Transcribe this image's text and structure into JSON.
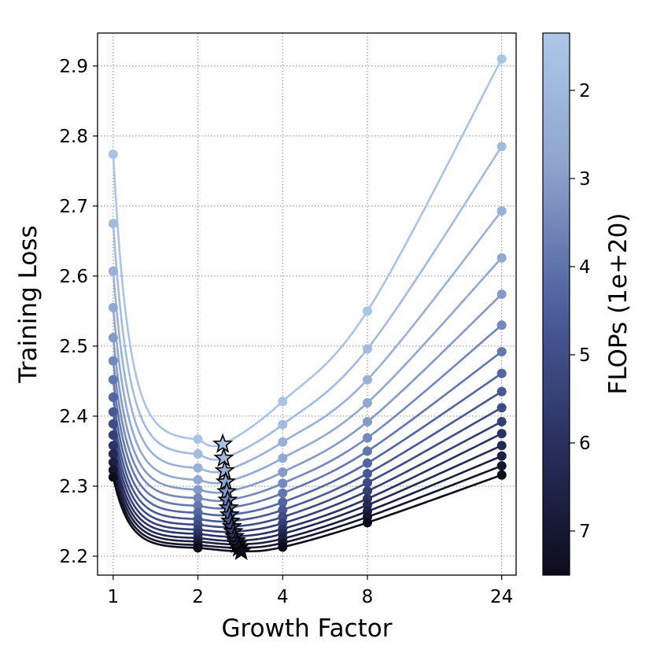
{
  "chart_data": {
    "type": "line",
    "xlabel": "Growth Factor",
    "ylabel": "Training Loss",
    "x_scale": "log",
    "x_ticks": [
      1,
      2,
      4,
      8,
      24
    ],
    "x_tick_labels": [
      "1",
      "2",
      "4",
      "8",
      "24"
    ],
    "y_ticks": [
      2.2,
      2.3,
      2.4,
      2.5,
      2.6,
      2.7,
      2.8,
      2.9
    ],
    "y_tick_labels": [
      "2.2",
      "2.3",
      "2.4",
      "2.5",
      "2.6",
      "2.7",
      "2.8",
      "2.9"
    ],
    "xlim": [
      0.88,
      27
    ],
    "ylim": [
      2.173,
      2.947
    ],
    "grid": true,
    "x": [
      1,
      2,
      4,
      8,
      24
    ],
    "series": [
      {
        "flops": 1.5,
        "values": [
          2.774,
          2.367,
          2.421,
          2.55,
          2.91
        ],
        "min": {
          "x": 2.45,
          "y": 2.36
        }
      },
      {
        "flops": 1.9,
        "values": [
          2.675,
          2.346,
          2.388,
          2.496,
          2.785
        ],
        "min": {
          "x": 2.47,
          "y": 2.34
        }
      },
      {
        "flops": 2.3,
        "values": [
          2.607,
          2.326,
          2.363,
          2.452,
          2.693
        ],
        "min": {
          "x": 2.49,
          "y": 2.322
        }
      },
      {
        "flops": 2.7,
        "values": [
          2.555,
          2.309,
          2.34,
          2.419,
          2.626
        ],
        "min": {
          "x": 2.51,
          "y": 2.306
        }
      },
      {
        "flops": 3.1,
        "values": [
          2.512,
          2.295,
          2.32,
          2.392,
          2.574
        ],
        "min": {
          "x": 2.53,
          "y": 2.292
        }
      },
      {
        "flops": 3.5,
        "values": [
          2.479,
          2.283,
          2.304,
          2.369,
          2.53
        ],
        "min": {
          "x": 2.55,
          "y": 2.28
        }
      },
      {
        "flops": 3.9,
        "values": [
          2.452,
          2.272,
          2.29,
          2.35,
          2.492
        ],
        "min": {
          "x": 2.57,
          "y": 2.269
        }
      },
      {
        "flops": 4.3,
        "values": [
          2.427,
          2.262,
          2.277,
          2.333,
          2.461
        ],
        "min": {
          "x": 2.59,
          "y": 2.259
        }
      },
      {
        "flops": 4.7,
        "values": [
          2.406,
          2.253,
          2.266,
          2.318,
          2.435
        ],
        "min": {
          "x": 2.61,
          "y": 2.25
        }
      },
      {
        "flops": 5.1,
        "values": [
          2.389,
          2.245,
          2.256,
          2.305,
          2.412
        ],
        "min": {
          "x": 2.64,
          "y": 2.242
        }
      },
      {
        "flops": 5.5,
        "values": [
          2.373,
          2.238,
          2.247,
          2.293,
          2.392
        ],
        "min": {
          "x": 2.67,
          "y": 2.235
        }
      },
      {
        "flops": 5.9,
        "values": [
          2.358,
          2.232,
          2.239,
          2.282,
          2.375
        ],
        "min": {
          "x": 2.7,
          "y": 2.228
        }
      },
      {
        "flops": 6.3,
        "values": [
          2.346,
          2.226,
          2.232,
          2.273,
          2.358
        ],
        "min": {
          "x": 2.73,
          "y": 2.222
        }
      },
      {
        "flops": 6.7,
        "values": [
          2.334,
          2.221,
          2.225,
          2.264,
          2.343
        ],
        "min": {
          "x": 2.76,
          "y": 2.217
        }
      },
      {
        "flops": 7.1,
        "values": [
          2.323,
          2.216,
          2.219,
          2.256,
          2.329
        ],
        "min": {
          "x": 2.8,
          "y": 2.212
        }
      },
      {
        "flops": 7.5,
        "values": [
          2.313,
          2.212,
          2.213,
          2.248,
          2.316
        ],
        "min": {
          "x": 2.85,
          "y": 2.207
        }
      }
    ],
    "colorbar": {
      "label": "FLOPs (1e+20)",
      "ticks": [
        2,
        3,
        4,
        5,
        6,
        7
      ],
      "tick_labels": [
        "2",
        "3",
        "4",
        "5",
        "6",
        "7"
      ],
      "range": [
        1.35,
        7.5
      ],
      "reversed": true,
      "colors": [
        "#0c0c1a",
        "#2a3161",
        "#4d609f",
        "#8da3cd",
        "#adc8e8"
      ]
    }
  }
}
